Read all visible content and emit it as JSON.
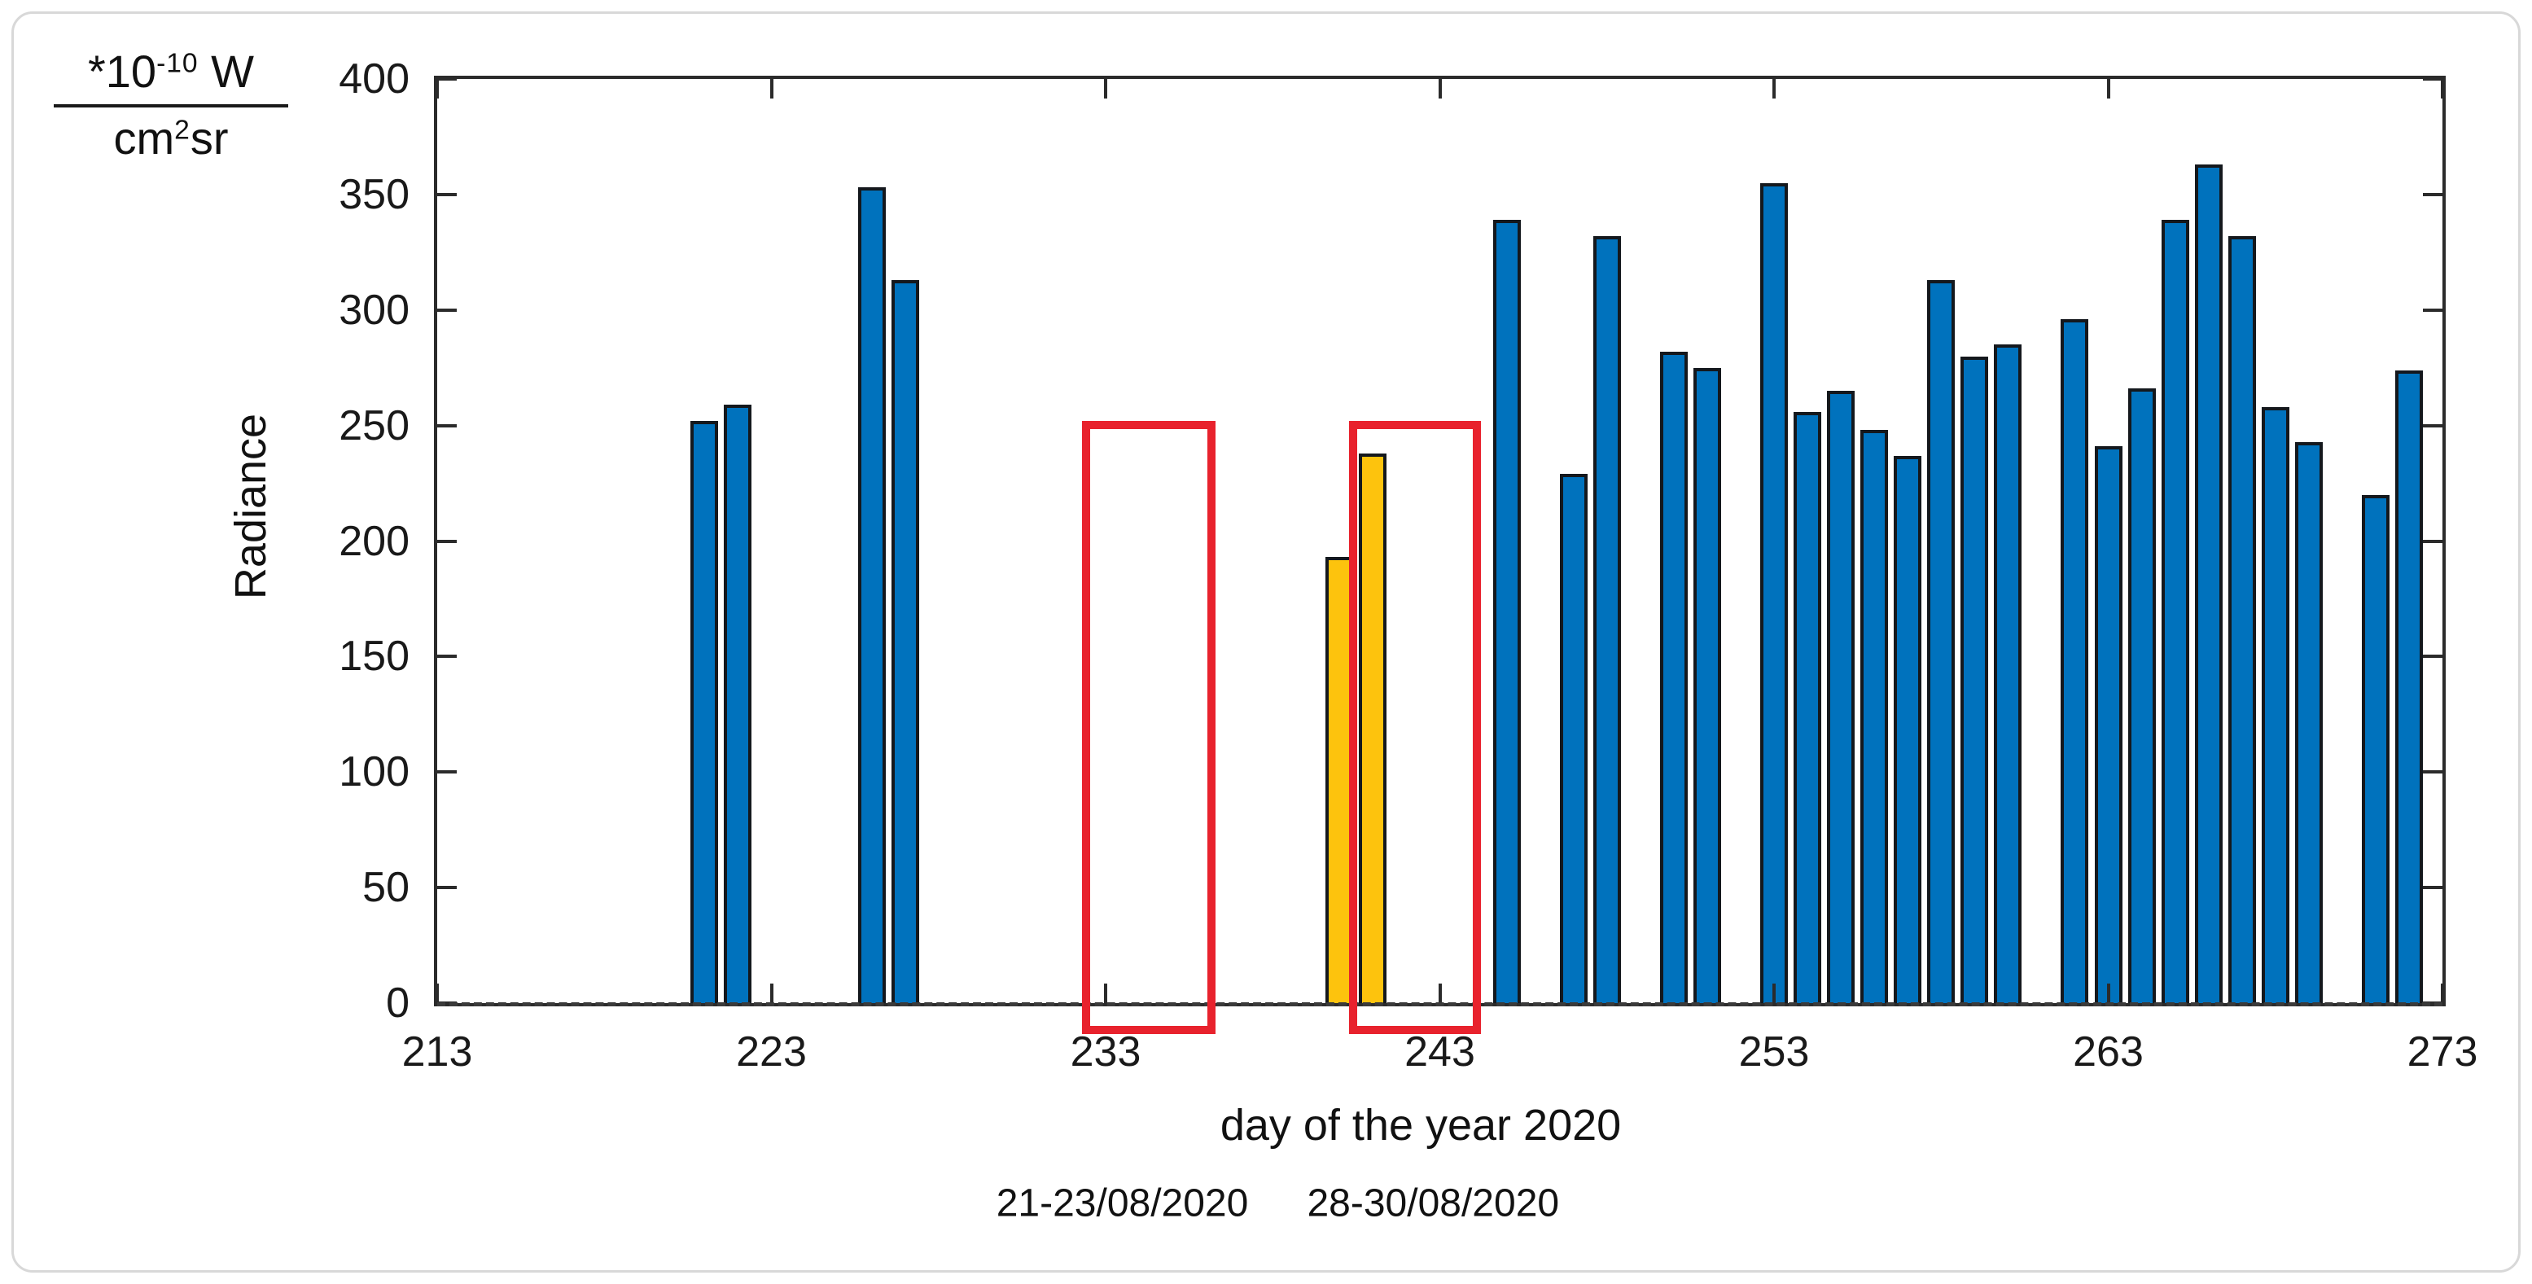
{
  "figure": {
    "unit_label": {
      "numerator_base": "*10",
      "numerator_exponent": "-10",
      "numerator_unit": " W",
      "denominator_base": "cm",
      "denominator_exponent": "2",
      "denominator_unit": "sr"
    }
  },
  "chart_data": {
    "type": "bar",
    "title": "",
    "xlabel": "day of the year 2020",
    "ylabel": "Radiance",
    "y_unit": "*10^-10 W / cm^2 sr",
    "xlim": [
      213,
      273
    ],
    "ylim": [
      0,
      400
    ],
    "xticks": [
      213,
      223,
      233,
      243,
      253,
      263,
      273
    ],
    "yticks": [
      0,
      50,
      100,
      150,
      200,
      250,
      300,
      350,
      400
    ],
    "grid": false,
    "legend": "none",
    "bar_color": "#0072BD",
    "highlight_color": "#FDC30D",
    "annotation_color": "#E8222D",
    "zero_line": {
      "style": "dashed",
      "value": 0
    },
    "bars": [
      {
        "day": 221,
        "value": 252,
        "highlight": false
      },
      {
        "day": 222,
        "value": 259,
        "highlight": false
      },
      {
        "day": 226,
        "value": 353,
        "highlight": false
      },
      {
        "day": 227,
        "value": 313,
        "highlight": false
      },
      {
        "day": 240,
        "value": 193,
        "highlight": true
      },
      {
        "day": 241,
        "value": 238,
        "highlight": true
      },
      {
        "day": 245,
        "value": 339,
        "highlight": false
      },
      {
        "day": 247,
        "value": 229,
        "highlight": false
      },
      {
        "day": 248,
        "value": 332,
        "highlight": false
      },
      {
        "day": 250,
        "value": 282,
        "highlight": false
      },
      {
        "day": 251,
        "value": 275,
        "highlight": false
      },
      {
        "day": 253,
        "value": 355,
        "highlight": false
      },
      {
        "day": 254,
        "value": 256,
        "highlight": false
      },
      {
        "day": 255,
        "value": 265,
        "highlight": false
      },
      {
        "day": 256,
        "value": 248,
        "highlight": false
      },
      {
        "day": 257,
        "value": 237,
        "highlight": false
      },
      {
        "day": 258,
        "value": 313,
        "highlight": false
      },
      {
        "day": 259,
        "value": 280,
        "highlight": false
      },
      {
        "day": 260,
        "value": 285,
        "highlight": false
      },
      {
        "day": 262,
        "value": 296,
        "highlight": false
      },
      {
        "day": 263,
        "value": 241,
        "highlight": false
      },
      {
        "day": 264,
        "value": 266,
        "highlight": false
      },
      {
        "day": 265,
        "value": 339,
        "highlight": false
      },
      {
        "day": 266,
        "value": 363,
        "highlight": false
      },
      {
        "day": 267,
        "value": 332,
        "highlight": false
      },
      {
        "day": 268,
        "value": 258,
        "highlight": false
      },
      {
        "day": 269,
        "value": 243,
        "highlight": false
      },
      {
        "day": 271,
        "value": 220,
        "highlight": false
      },
      {
        "day": 272,
        "value": 274,
        "highlight": false
      }
    ],
    "annotations": [
      {
        "label": "21-23/08/2020",
        "day_start": 232.3,
        "day_end": 236.3,
        "value_top": 252,
        "value_bottom": -13.4,
        "label_center_day": 233.5
      },
      {
        "label": "28-30/08/2020",
        "day_start": 240.28,
        "day_end": 244.23,
        "value_top": 252,
        "value_bottom": -13.4,
        "label_center_day": 242.8
      }
    ]
  }
}
